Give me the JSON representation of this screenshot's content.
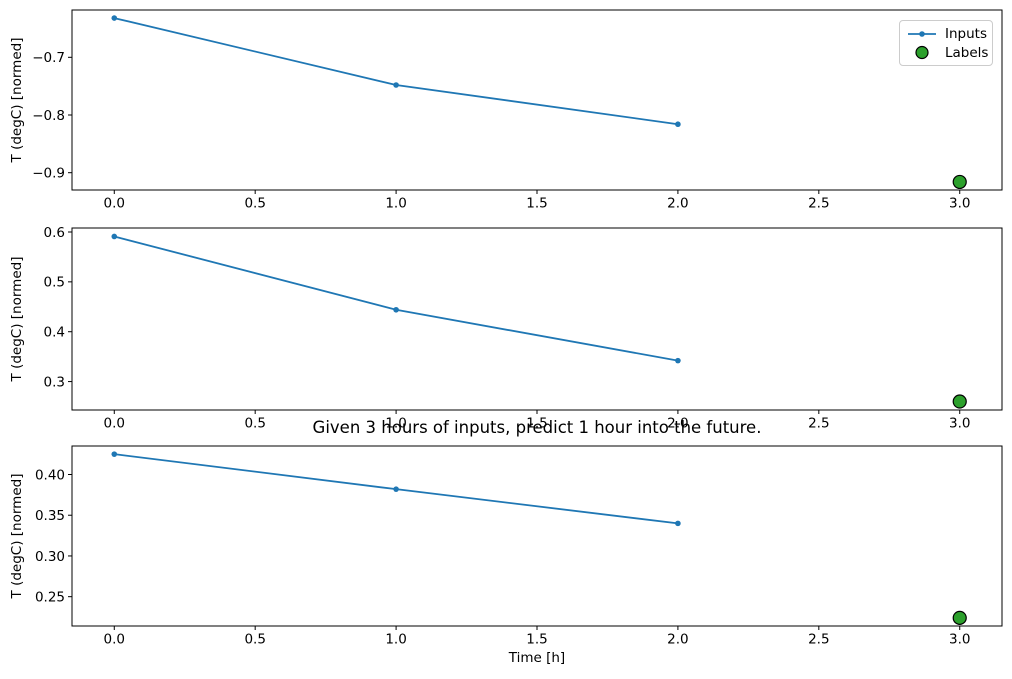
{
  "figure": {
    "title": "Given 3 hours of inputs, predict 1 hour into the future.",
    "xlabel": "Time [h]",
    "ylabel": "T (degC) [normed]",
    "colors": {
      "inputs_line": "#1f77b4",
      "labels_marker": "#2ca02c",
      "labels_marker_edge": "#000000",
      "axes": "#000000",
      "legend_border": "#cccccc"
    },
    "legend": {
      "position": "upper right",
      "items": [
        {
          "label": "Inputs",
          "marker": "line-with-dot",
          "color": "#1f77b4"
        },
        {
          "label": "Labels",
          "marker": "circle",
          "color": "#2ca02c"
        }
      ]
    }
  },
  "chart_data": [
    {
      "type": "line",
      "subplot": 1,
      "title": "",
      "xlabel": "",
      "ylabel": "T (degC) [normed]",
      "xlim": [
        -0.15,
        3.15
      ],
      "ylim": [
        -0.93,
        -0.618
      ],
      "xtick_values": [
        0,
        0.5,
        1,
        1.5,
        2,
        2.5,
        3
      ],
      "xtick_labels": [
        "0.0",
        "0.5",
        "1.0",
        "1.5",
        "2.0",
        "2.5",
        "3.0"
      ],
      "ytick_values": [
        -0.7,
        -0.8,
        -0.9
      ],
      "ytick_labels": [
        "−0.7",
        "−0.8",
        "−0.9"
      ],
      "grid": false,
      "legend_position": "upper right",
      "series": [
        {
          "name": "Inputs",
          "type": "line",
          "x": [
            0,
            1,
            2
          ],
          "y": [
            -0.632,
            -0.748,
            -0.816
          ],
          "color": "#1f77b4",
          "marker": "dot"
        },
        {
          "name": "Labels",
          "type": "scatter",
          "x": [
            3
          ],
          "y": [
            -0.916
          ],
          "color": "#2ca02c",
          "edge": "#000000"
        }
      ]
    },
    {
      "type": "line",
      "subplot": 2,
      "title": "",
      "xlabel": "",
      "ylabel": "T (degC) [normed]",
      "xlim": [
        -0.15,
        3.15
      ],
      "ylim": [
        0.243,
        0.608
      ],
      "xtick_values": [
        0,
        0.5,
        1,
        1.5,
        2,
        2.5,
        3
      ],
      "xtick_labels": [
        "0.0",
        "0.5",
        "1.0",
        "1.5",
        "2.0",
        "2.5",
        "3.0"
      ],
      "ytick_values": [
        0.6,
        0.5,
        0.4,
        0.3
      ],
      "ytick_labels": [
        "0.6",
        "0.5",
        "0.4",
        "0.3"
      ],
      "grid": false,
      "legend_position": "none",
      "series": [
        {
          "name": "Inputs",
          "type": "line",
          "x": [
            0,
            1,
            2
          ],
          "y": [
            0.591,
            0.444,
            0.342
          ],
          "color": "#1f77b4",
          "marker": "dot"
        },
        {
          "name": "Labels",
          "type": "scatter",
          "x": [
            3
          ],
          "y": [
            0.26
          ],
          "color": "#2ca02c",
          "edge": "#000000"
        }
      ]
    },
    {
      "type": "line",
      "subplot": 3,
      "title": "Given 3 hours of inputs, predict 1 hour into the future.",
      "xlabel": "Time [h]",
      "ylabel": "T (degC) [normed]",
      "xlim": [
        -0.15,
        3.15
      ],
      "ylim": [
        0.214,
        0.435
      ],
      "xtick_values": [
        0,
        0.5,
        1,
        1.5,
        2,
        2.5,
        3
      ],
      "xtick_labels": [
        "0.0",
        "0.5",
        "1.0",
        "1.5",
        "2.0",
        "2.5",
        "3.0"
      ],
      "ytick_values": [
        0.4,
        0.35,
        0.3,
        0.25
      ],
      "ytick_labels": [
        "0.40",
        "0.35",
        "0.30",
        "0.25"
      ],
      "grid": false,
      "legend_position": "none",
      "series": [
        {
          "name": "Inputs",
          "type": "line",
          "x": [
            0,
            1,
            2
          ],
          "y": [
            0.425,
            0.382,
            0.34
          ],
          "color": "#1f77b4",
          "marker": "dot"
        },
        {
          "name": "Labels",
          "type": "scatter",
          "x": [
            3
          ],
          "y": [
            0.224
          ],
          "color": "#2ca02c",
          "edge": "#000000"
        }
      ]
    }
  ]
}
